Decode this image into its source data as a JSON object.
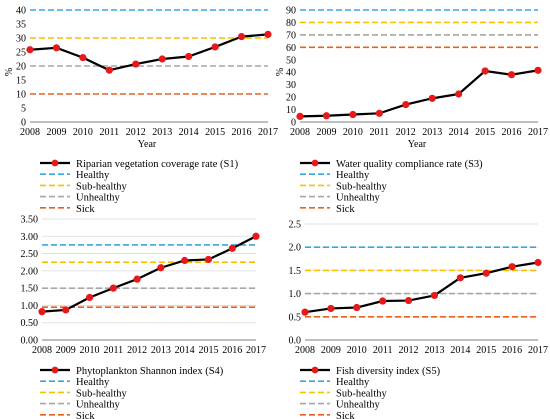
{
  "threshold_labels": [
    "Healthy",
    "Sub-healthy",
    "Unhealthy",
    "Sick"
  ],
  "colors": {
    "series": "#000000",
    "marker": "#e8191b",
    "healthy": "#3aa6dd",
    "sub_healthy": "#f2c200",
    "unhealthy": "#a6a6a6",
    "sick": "#e8601c",
    "grid": "#d9d9d9"
  },
  "chart_data": [
    {
      "type": "line",
      "title": "",
      "xlabel": "Year",
      "ylabel": "%",
      "x": [
        "2008",
        "2009",
        "2010",
        "2011",
        "2012",
        "2013",
        "2014",
        "2015",
        "2016",
        "2017"
      ],
      "yticks": [
        "0",
        "5",
        "10",
        "15",
        "20",
        "25",
        "30",
        "35",
        "40"
      ],
      "ylim": [
        0,
        40
      ],
      "series": [
        {
          "name": "Riparian vegetation coverage rate (S1)",
          "values": [
            25.8,
            26.5,
            23.0,
            18.5,
            20.7,
            22.5,
            23.4,
            26.8,
            30.5,
            31.3
          ]
        }
      ],
      "thresholds": [
        40,
        30,
        20,
        10
      ],
      "grid": false
    },
    {
      "type": "line",
      "title": "",
      "xlabel": "Year",
      "ylabel": "%",
      "x": [
        "2008",
        "2009",
        "2010",
        "2011",
        "2012",
        "2013",
        "2014",
        "2015",
        "2016",
        "2017"
      ],
      "yticks": [
        "0",
        "10",
        "20",
        "30",
        "40",
        "50",
        "60",
        "70",
        "80",
        "90"
      ],
      "ylim": [
        0,
        90
      ],
      "series": [
        {
          "name": "Water quality compliance rate (S3)",
          "values": [
            4.5,
            5.0,
            6.0,
            7.0,
            14.0,
            19.0,
            22.5,
            41.0,
            38.0,
            41.5
          ]
        }
      ],
      "thresholds": [
        90,
        80,
        70,
        60
      ],
      "grid": false
    },
    {
      "type": "line",
      "title": "",
      "xlabel": "",
      "ylabel": "",
      "x": [
        "2008",
        "2009",
        "2010",
        "2011",
        "2012",
        "2013",
        "2014",
        "2015",
        "2016",
        "2017"
      ],
      "yticks": [
        "0.00",
        "0.50",
        "1.00",
        "1.50",
        "2.00",
        "2.50",
        "3.00",
        "3.50"
      ],
      "ylim": [
        0,
        3.5
      ],
      "series": [
        {
          "name": "Phytoplankton Shannon index (S4)",
          "values": [
            0.82,
            0.87,
            1.23,
            1.5,
            1.76,
            2.09,
            2.3,
            2.33,
            2.65,
            3.0
          ]
        }
      ],
      "thresholds": [
        2.75,
        2.25,
        1.5,
        0.95
      ],
      "grid": true
    },
    {
      "type": "line",
      "title": "",
      "xlabel": "",
      "ylabel": "",
      "x": [
        "2008",
        "2009",
        "2010",
        "2011",
        "2012",
        "2013",
        "2014",
        "2015",
        "2016",
        "2017"
      ],
      "yticks": [
        "0.0",
        "0.5",
        "1.0",
        "1.5",
        "2.0",
        "2.5"
      ],
      "ylim": [
        0,
        2.5
      ],
      "series": [
        {
          "name": "Fish diversity index (S5)",
          "values": [
            0.6,
            0.68,
            0.7,
            0.84,
            0.85,
            0.96,
            1.34,
            1.44,
            1.58,
            1.67
          ]
        }
      ],
      "thresholds": [
        2.0,
        1.5,
        1.0,
        0.5
      ],
      "grid": true
    }
  ]
}
